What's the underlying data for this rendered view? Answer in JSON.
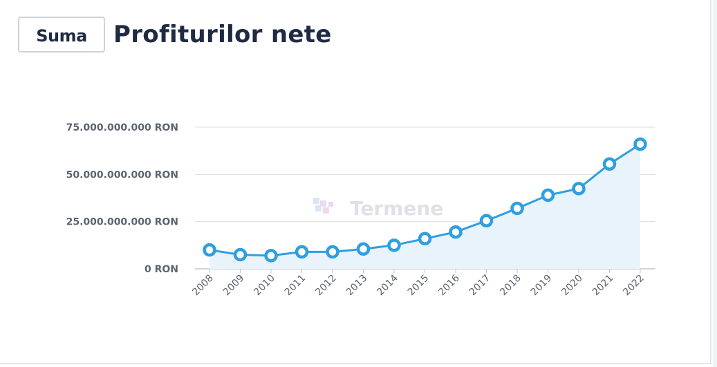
{
  "header": {
    "button_label": "Suma",
    "title": "Profiturilor nete"
  },
  "watermark": "Termene",
  "colors": {
    "line": "#2e9fe0",
    "area": "#e8f3fc",
    "grid": "#d9dce1",
    "title": "#1f2a44"
  },
  "chart_data": {
    "type": "area",
    "categories": [
      "2008",
      "2009",
      "2010",
      "2011",
      "2012",
      "2013",
      "2014",
      "2015",
      "2016",
      "2017",
      "2018",
      "2019",
      "2020",
      "2021",
      "2022"
    ],
    "series": [
      {
        "values": [
          10000000000,
          7500000000,
          7000000000,
          9000000000,
          9000000000,
          10500000000,
          12500000000,
          16000000000,
          19500000000,
          25500000000,
          32000000000,
          39000000000,
          42500000000,
          55500000000,
          66000000000
        ]
      }
    ],
    "y_ticks": [
      "0 RON",
      "25.000.000.000 RON",
      "50.000.000.000 RON",
      "75.000.000.000 RON"
    ],
    "ylim": [
      0,
      75000000000
    ],
    "grid": true
  }
}
